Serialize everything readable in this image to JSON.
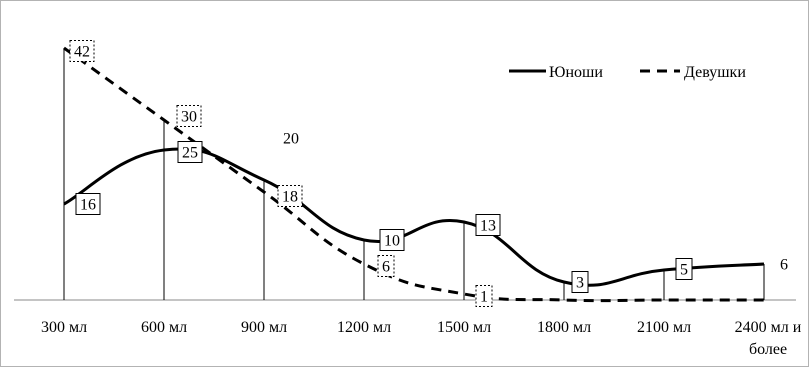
{
  "chart_data": {
    "type": "line",
    "title": "",
    "xlabel": "",
    "ylabel": "",
    "categories": [
      "300 мл",
      "600 мл",
      "900 мл",
      "1200 мл",
      "1500 мл",
      "1800 мл",
      "2100 мл",
      "2400 мл и более"
    ],
    "series": [
      {
        "name": "Юноши",
        "values": [
          16,
          25,
          20,
          10,
          13,
          3,
          5,
          6
        ],
        "line_style": "solid",
        "color": "#000000"
      },
      {
        "name": "Девушки",
        "values": [
          42,
          30,
          18,
          6,
          1,
          0,
          0,
          0
        ],
        "line_style": "dashed",
        "color": "#000000"
      }
    ],
    "ylim": [
      0,
      45
    ],
    "grid": false,
    "legend": {
      "position": "top-right",
      "entries": [
        "Юноши",
        "Девушки"
      ]
    },
    "data_labels": [
      {
        "series": "Девушки",
        "index": 0,
        "text": "42"
      },
      {
        "series": "Девушки",
        "index": 1,
        "text": "30"
      },
      {
        "series": "Юноши",
        "index": 0,
        "text": "16"
      },
      {
        "series": "Юноши",
        "index": 1,
        "text": "25"
      },
      {
        "series": "Юноши",
        "index": 2,
        "text": "20"
      },
      {
        "series": "Девушки",
        "index": 2,
        "text": "18"
      },
      {
        "series": "Юноши",
        "index": 3,
        "text": "10"
      },
      {
        "series": "Девушки",
        "index": 3,
        "text": "6"
      },
      {
        "series": "Юноши",
        "index": 4,
        "text": "13"
      },
      {
        "series": "Девушки",
        "index": 4,
        "text": "1"
      },
      {
        "series": "Юноши",
        "index": 5,
        "text": "3"
      },
      {
        "series": "Юноши",
        "index": 6,
        "text": "5"
      },
      {
        "series": "Юноши",
        "index": 7,
        "text": "6"
      }
    ]
  }
}
